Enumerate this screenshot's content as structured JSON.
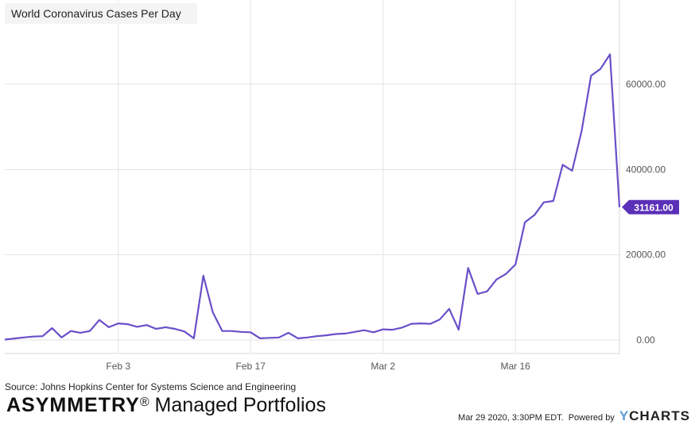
{
  "chart_data": {
    "type": "line",
    "title": "World Coronavirus Cases Per Day",
    "x_ticks": [
      "Feb 3",
      "Feb 17",
      "Mar 2",
      "Mar 16"
    ],
    "y_ticks": [
      "0.00",
      "20000.00",
      "40000.00",
      "60000.00"
    ],
    "ylim": [
      -3000,
      78000
    ],
    "x_start": "Jan 22",
    "series": [
      {
        "name": "World Coronavirus Cases Per Day",
        "color": "#6a4fc9",
        "values": [
          100,
          350,
          600,
          800,
          900,
          2800,
          600,
          2100,
          1700,
          2100,
          4700,
          3000,
          3900,
          3700,
          3100,
          3500,
          2600,
          3000,
          2600,
          2000,
          400,
          15100,
          6500,
          2100,
          2100,
          1900,
          1800,
          400,
          500,
          600,
          1700,
          400,
          600,
          900,
          1100,
          1400,
          1500,
          1900,
          2300,
          1800,
          2500,
          2400,
          2900,
          3800,
          3900,
          3800,
          4800,
          7300,
          2400,
          16900,
          10800,
          11400,
          14200,
          15500,
          17700,
          27600,
          29300,
          32300,
          32600,
          41100,
          39700,
          49000,
          62000,
          63600,
          67000,
          31161
        ],
        "last_label": "31161.00"
      }
    ]
  },
  "source": "Source: Johns Hopkins Center for Systems Science and Engineering",
  "brand": {
    "bold": "ASYMMETRY",
    "reg": "®",
    "rest": " Managed Portfolios"
  },
  "footer": {
    "timestamp": "Mar 29 2020, 3:30PM EDT.",
    "powered": "Powered by",
    "logo_y": "Y",
    "logo_rest": "CHARTS"
  }
}
